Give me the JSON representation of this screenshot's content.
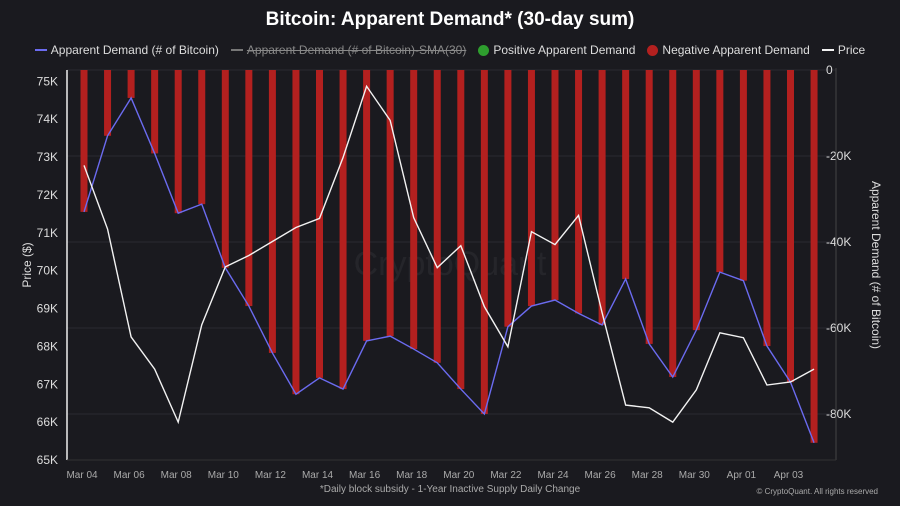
{
  "chart_data": {
    "type": "bar+line",
    "title": "Bitcoin: Apparent Demand* (30-day sum)",
    "footnote": "*Daily block subsidy - 1-Year Inactive Supply Daily Change",
    "copyright": "© CryptoQuant. All rights reserved",
    "watermark": "CryptoQuant",
    "ylabel_left": "Price ($)",
    "ylabel_right": "Apparent Demand (# of Bitcoin)",
    "ylim_left": [
      65000,
      75300
    ],
    "ylim_right": [
      -90700,
      0
    ],
    "yticks_left": [
      "65K",
      "66K",
      "67K",
      "68K",
      "69K",
      "70K",
      "71K",
      "72K",
      "73K",
      "74K",
      "75K"
    ],
    "yticks_left_values": [
      65000,
      66000,
      67000,
      68000,
      69000,
      70000,
      71000,
      72000,
      73000,
      74000,
      75000
    ],
    "yticks_right": [
      "0",
      "-20K",
      "-40K",
      "-60K",
      "-80K"
    ],
    "yticks_right_values": [
      0,
      -20000,
      -40000,
      -60000,
      -80000
    ],
    "xticks": [
      "Mar 04",
      "Mar 06",
      "Mar 08",
      "Mar 10",
      "Mar 12",
      "Mar 14",
      "Mar 16",
      "Mar 18",
      "Mar 20",
      "Mar 22",
      "Mar 24",
      "Mar 26",
      "Mar 28",
      "Mar 30",
      "Apr 01",
      "Apr 03"
    ],
    "categories": [
      "Mar 04",
      "Mar 05",
      "Mar 06",
      "Mar 07",
      "Mar 08",
      "Mar 09",
      "Mar 10",
      "Mar 11",
      "Mar 12",
      "Mar 13",
      "Mar 14",
      "Mar 15",
      "Mar 16",
      "Mar 17",
      "Mar 18",
      "Mar 19",
      "Mar 20",
      "Mar 21",
      "Mar 22",
      "Mar 23",
      "Mar 24",
      "Mar 25",
      "Mar 26",
      "Mar 27",
      "Mar 28",
      "Mar 29",
      "Mar 30",
      "Mar 31",
      "Apr 01",
      "Apr 02",
      "Apr 03",
      "Apr 04"
    ],
    "legend": [
      {
        "name": "Apparent Demand (# of Bitcoin)",
        "color": "#6b6bf0",
        "kind": "line",
        "hidden": false
      },
      {
        "name": "Apparent Demand (# of Bitcoin)-SMA(30)",
        "color": "#777777",
        "kind": "line",
        "hidden": true
      },
      {
        "name": "Positive Apparent Demand",
        "color": "#2e9e2e",
        "kind": "dot",
        "hidden": false
      },
      {
        "name": "Negative Apparent Demand",
        "color": "#b3201f",
        "kind": "dot",
        "hidden": false
      },
      {
        "name": "Price",
        "color": "#f2f2f2",
        "kind": "line",
        "hidden": false
      }
    ],
    "series": [
      {
        "name": "Apparent Demand (# of Bitcoin)",
        "axis": "right",
        "values": [
          -33000,
          -15300,
          -6500,
          -19400,
          -33300,
          -31200,
          -46000,
          -54900,
          -65800,
          -75400,
          -71600,
          -74200,
          -63000,
          -61900,
          -64900,
          -68100,
          -74200,
          -80000,
          -59700,
          -54900,
          -53500,
          -56600,
          -59300,
          -48600,
          -63700,
          -71400,
          -60500,
          -47000,
          -49000,
          -64200,
          -72600,
          -86700
        ]
      },
      {
        "name": "Price",
        "axis": "left",
        "values": [
          72780,
          71100,
          68250,
          67400,
          66000,
          68570,
          70100,
          70400,
          70770,
          71140,
          71380,
          72990,
          74870,
          73970,
          71400,
          70080,
          70660,
          69050,
          67990,
          71030,
          70690,
          71460,
          68890,
          66450,
          66380,
          66000,
          66850,
          68360,
          68230,
          66980,
          67060,
          67400
        ]
      }
    ],
    "grid": true,
    "legend_position": "top"
  }
}
